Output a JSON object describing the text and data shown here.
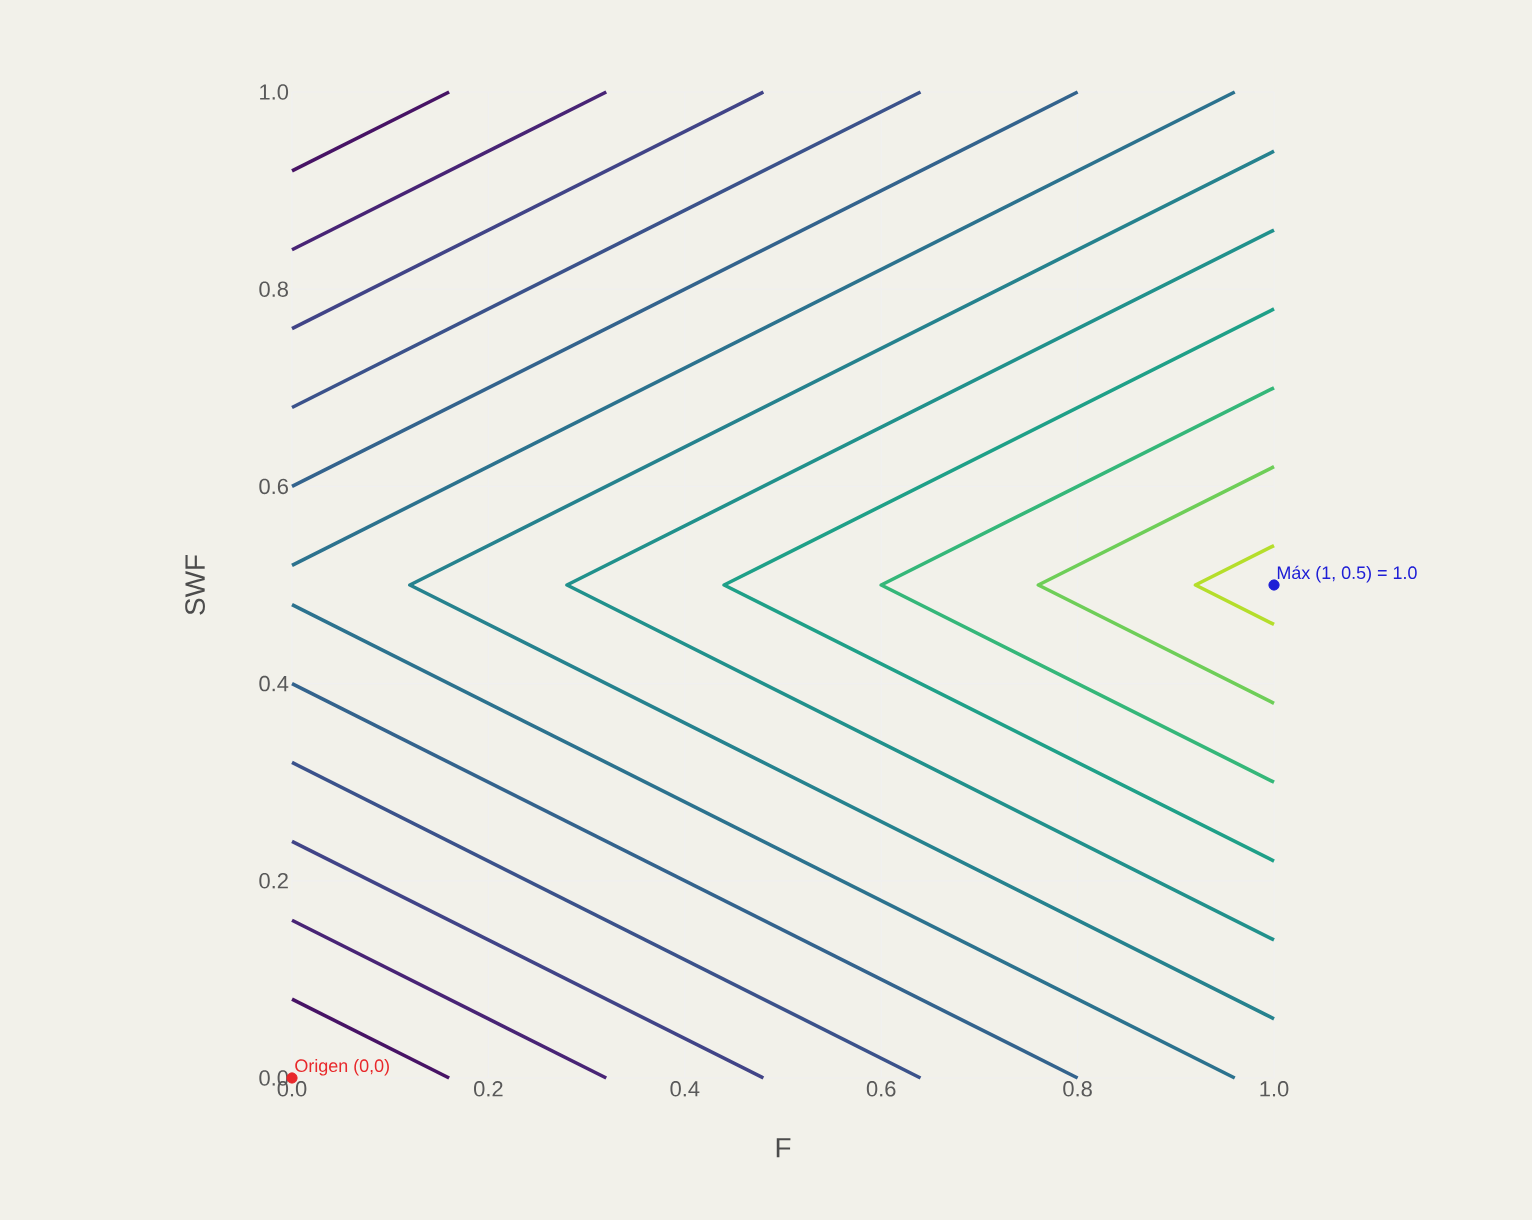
{
  "chart_data": {
    "type": "line",
    "xlabel": "F",
    "ylabel": "SWF",
    "xlim": [
      0,
      1
    ],
    "ylim": [
      0,
      1
    ],
    "xticks": [
      {
        "value": 0,
        "label": "0.0"
      },
      {
        "value": 0.2,
        "label": "0.2"
      },
      {
        "value": 0.4,
        "label": "0.4"
      },
      {
        "value": 0.6,
        "label": "0.6"
      },
      {
        "value": 0.8,
        "label": "0.8"
      },
      {
        "value": 1,
        "label": "1.0"
      }
    ],
    "yticks": [
      {
        "value": 0,
        "label": "0.0"
      },
      {
        "value": 0.2,
        "label": "0.2"
      },
      {
        "value": 0.4,
        "label": "0.4"
      },
      {
        "value": 0.6,
        "label": "0.6"
      },
      {
        "value": 0.8,
        "label": "0.8"
      },
      {
        "value": 1,
        "label": "1.0"
      }
    ],
    "grid": true,
    "line_style": "solid",
    "series": [
      {
        "color": "#471365",
        "x": [
          0,
          0.16
        ],
        "values": [
          0.08,
          0
        ]
      },
      {
        "color": "#471365",
        "x": [
          0,
          0.16
        ],
        "values": [
          0.92,
          1
        ]
      },
      {
        "color": "#482475",
        "x": [
          0,
          0.32
        ],
        "values": [
          0.16,
          0
        ]
      },
      {
        "color": "#482475",
        "x": [
          0,
          0.32
        ],
        "values": [
          0.84,
          1
        ]
      },
      {
        "color": "#414487",
        "x": [
          0,
          0.48
        ],
        "values": [
          0.24,
          0
        ]
      },
      {
        "color": "#414487",
        "x": [
          0,
          0.48
        ],
        "values": [
          0.76,
          1
        ]
      },
      {
        "color": "#3b528b",
        "x": [
          0,
          0.64
        ],
        "values": [
          0.32,
          0
        ]
      },
      {
        "color": "#3b528b",
        "x": [
          0,
          0.64
        ],
        "values": [
          0.68,
          1
        ]
      },
      {
        "color": "#33638d",
        "x": [
          0,
          0.8
        ],
        "values": [
          0.4,
          0
        ]
      },
      {
        "color": "#33638d",
        "x": [
          0,
          0.8
        ],
        "values": [
          0.6,
          1
        ]
      },
      {
        "color": "#2c728e",
        "x": [
          0,
          0.96
        ],
        "values": [
          0.48,
          0
        ]
      },
      {
        "color": "#2c728e",
        "x": [
          0,
          0.96
        ],
        "values": [
          0.52,
          1
        ]
      },
      {
        "color": "#26828e",
        "x": [
          1,
          0.12,
          1
        ],
        "values": [
          0.06,
          0.5,
          0.94
        ]
      },
      {
        "color": "#21918c",
        "x": [
          1,
          0.28,
          1
        ],
        "values": [
          0.14,
          0.5,
          0.86
        ]
      },
      {
        "color": "#1fa088",
        "x": [
          1,
          0.44,
          1
        ],
        "values": [
          0.22,
          0.5,
          0.78
        ]
      },
      {
        "color": "#35b779",
        "x": [
          1,
          0.6,
          1
        ],
        "values": [
          0.3,
          0.5,
          0.7
        ]
      },
      {
        "color": "#6ece58",
        "x": [
          1,
          0.76,
          1
        ],
        "values": [
          0.38,
          0.5,
          0.62
        ]
      },
      {
        "color": "#b5de2b",
        "x": [
          1,
          0.92,
          1
        ],
        "values": [
          0.46,
          0.5,
          0.54
        ]
      },
      {
        "type": "scatter",
        "marker": "circle",
        "color": "#e8282b",
        "x": [
          0
        ],
        "values": [
          0
        ]
      },
      {
        "type": "scatter",
        "marker": "circle",
        "color": "#1f1fd6",
        "x": [
          1
        ],
        "values": [
          0.5
        ]
      }
    ],
    "annotations": [
      {
        "text": "Origen (0,0)",
        "x": 0,
        "y": 0
      },
      {
        "text": "Máx (1, 0.5) = 1.0",
        "x": 1,
        "y": 0.5
      }
    ]
  }
}
